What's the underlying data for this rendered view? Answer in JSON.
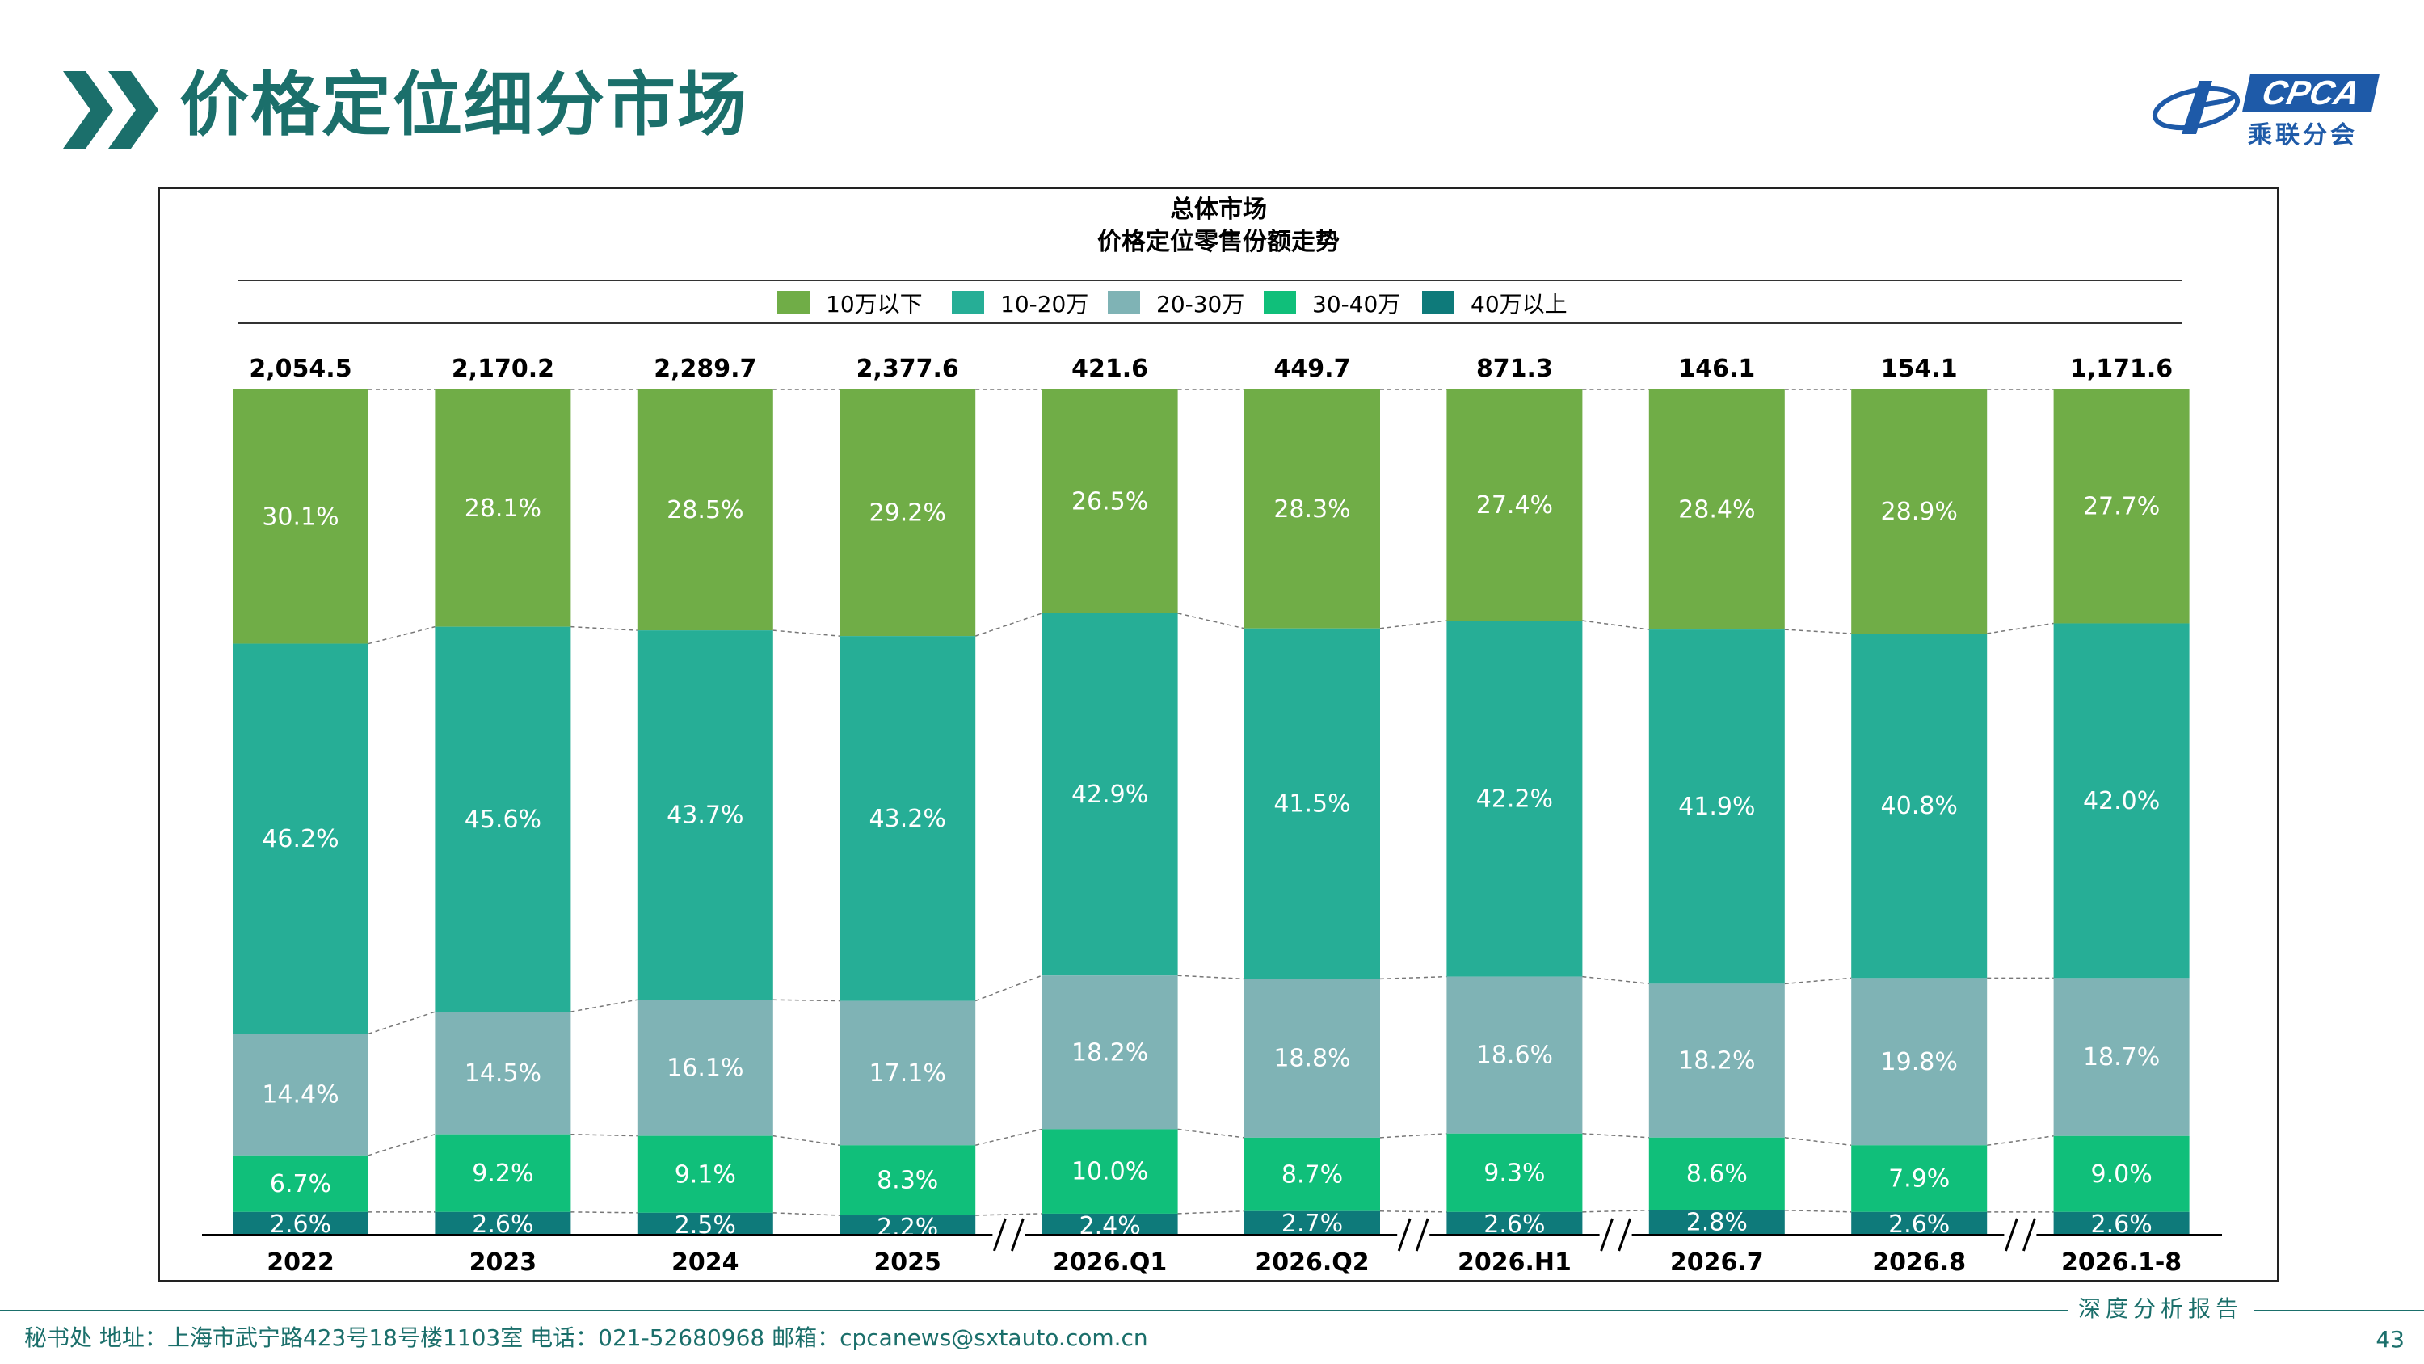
{
  "header": {
    "title": "价格定位细分市场"
  },
  "logo": {
    "brand": "CPCA",
    "subtitle": "乘联分会"
  },
  "footer": {
    "info": "秘书处   地址：上海市武宁路423号18号楼1103室   电话：021-52680968    邮箱：cpcanews@sxtauto.com.cn",
    "report_label": "深度分析报告",
    "page_number": "43"
  },
  "colors": {
    "series": [
      "#70ad47",
      "#26ae96",
      "#7fb3b5",
      "#10bf7a",
      "#0e7a7a"
    ],
    "title_teal": "#1b6f6b"
  },
  "chart_data": {
    "type": "bar",
    "stacked": true,
    "normalized": true,
    "title": "总体市场",
    "subtitle": "价格定位零售份额走势",
    "legend_position": "top",
    "categories": [
      "2022",
      "2023",
      "2024",
      "2025",
      "2026.Q1",
      "2026.Q2",
      "2026.H1",
      "2026.7",
      "2026.8",
      "2026.1-8"
    ],
    "totals": [
      "2,054.5",
      "2,170.2",
      "2,289.7",
      "2,377.6",
      "421.6",
      "449.7",
      "871.3",
      "146.1",
      "154.1",
      "1,171.6"
    ],
    "axis_breaks_after": [
      3,
      5,
      6,
      8
    ],
    "series": [
      {
        "name": "10万以下",
        "values": [
          30.1,
          28.1,
          28.5,
          29.2,
          26.5,
          28.3,
          27.4,
          28.4,
          28.9,
          27.7
        ]
      },
      {
        "name": "10-20万",
        "values": [
          46.2,
          45.6,
          43.7,
          43.2,
          42.9,
          41.5,
          42.2,
          41.9,
          40.8,
          42.0
        ]
      },
      {
        "name": "20-30万",
        "values": [
          14.4,
          14.5,
          16.1,
          17.1,
          18.2,
          18.8,
          18.6,
          18.2,
          19.8,
          18.7
        ]
      },
      {
        "name": "30-40万",
        "values": [
          6.7,
          9.2,
          9.1,
          8.3,
          10.0,
          8.7,
          9.3,
          8.6,
          7.9,
          9.0
        ]
      },
      {
        "name": "40万以上",
        "values": [
          2.6,
          2.6,
          2.5,
          2.2,
          2.4,
          2.7,
          2.6,
          2.8,
          2.6,
          2.6
        ]
      }
    ],
    "value_suffix": "%"
  }
}
